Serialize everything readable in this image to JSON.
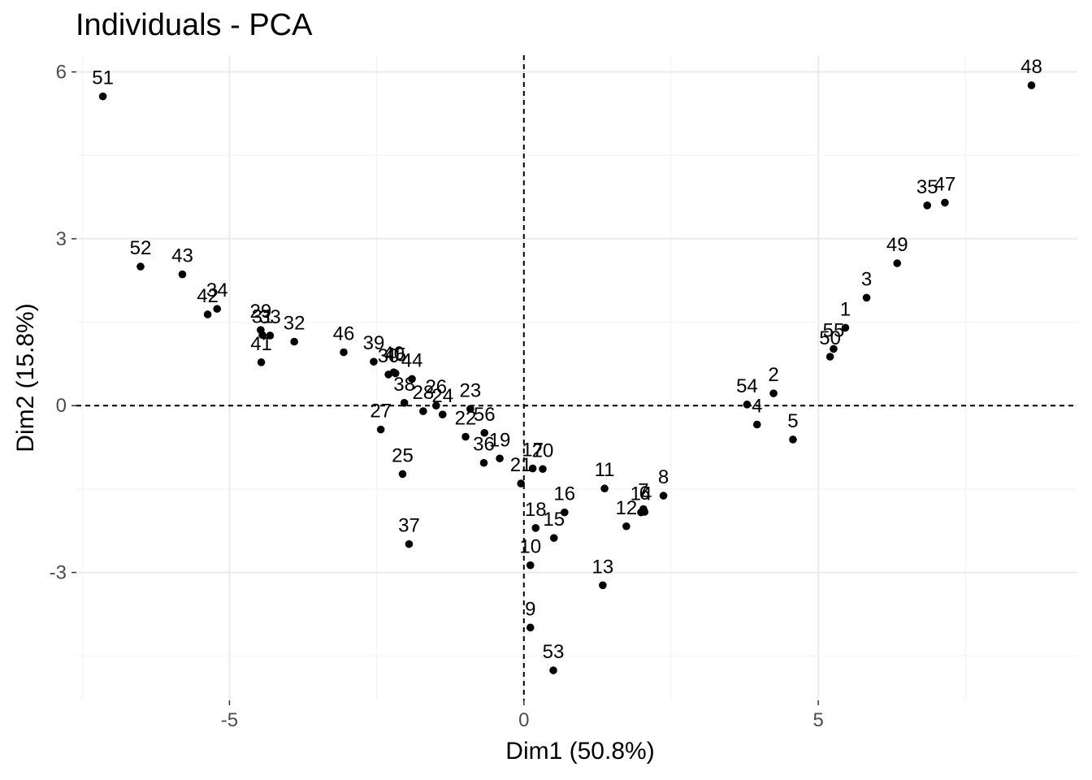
{
  "chart_data": {
    "type": "scatter",
    "title": "Individuals - PCA",
    "xlabel": "Dim1 (50.8%)",
    "ylabel": "Dim2 (15.8%)",
    "xlim": [
      -7.6,
      9.4
    ],
    "ylim": [
      -5.3,
      6.3
    ],
    "x_ticks": [
      -5,
      0,
      5
    ],
    "x_tick_labels": [
      "-5",
      "0",
      "5"
    ],
    "y_ticks": [
      -3,
      0,
      3,
      6
    ],
    "y_tick_labels": [
      "-3",
      "0",
      "3",
      "6"
    ],
    "grid": true,
    "reference_lines": {
      "x": 0,
      "y": 0,
      "style": "dashed"
    },
    "points": [
      {
        "label": "1",
        "x": 5.46,
        "y": 1.4
      },
      {
        "label": "2",
        "x": 4.24,
        "y": 0.22
      },
      {
        "label": "3",
        "x": 5.82,
        "y": 1.94
      },
      {
        "label": "4",
        "x": 3.96,
        "y": -0.34
      },
      {
        "label": "5",
        "x": 4.57,
        "y": -0.61
      },
      {
        "label": "6",
        "x": 2.05,
        "y": -1.91
      },
      {
        "label": "7",
        "x": 2.03,
        "y": -1.86
      },
      {
        "label": "8",
        "x": 2.37,
        "y": -1.62
      },
      {
        "label": "9",
        "x": 0.11,
        "y": -3.99
      },
      {
        "label": "10",
        "x": 0.11,
        "y": -2.87
      },
      {
        "label": "11",
        "x": 1.37,
        "y": -1.49
      },
      {
        "label": "12",
        "x": 1.74,
        "y": -2.17
      },
      {
        "label": "13",
        "x": 1.34,
        "y": -3.23
      },
      {
        "label": "14",
        "x": 1.99,
        "y": -1.92
      },
      {
        "label": "15",
        "x": 0.51,
        "y": -2.38
      },
      {
        "label": "16",
        "x": 0.69,
        "y": -1.92
      },
      {
        "label": "17",
        "x": 0.15,
        "y": -1.13
      },
      {
        "label": "18",
        "x": 0.2,
        "y": -2.2
      },
      {
        "label": "19",
        "x": -0.41,
        "y": -0.95
      },
      {
        "label": "20",
        "x": 0.32,
        "y": -1.14
      },
      {
        "label": "21",
        "x": -0.05,
        "y": -1.4
      },
      {
        "label": "22",
        "x": -0.99,
        "y": -0.56
      },
      {
        "label": "23",
        "x": -0.91,
        "y": -0.06
      },
      {
        "label": "24",
        "x": -1.38,
        "y": -0.16
      },
      {
        "label": "25",
        "x": -2.06,
        "y": -1.23
      },
      {
        "label": "26",
        "x": -1.49,
        "y": 0.0
      },
      {
        "label": "27",
        "x": -2.43,
        "y": -0.43
      },
      {
        "label": "28",
        "x": -1.71,
        "y": -0.1
      },
      {
        "label": "29",
        "x": -4.47,
        "y": 1.36
      },
      {
        "label": "30",
        "x": -2.3,
        "y": 0.56
      },
      {
        "label": "31",
        "x": -4.44,
        "y": 1.27
      },
      {
        "label": "32",
        "x": -3.9,
        "y": 1.15
      },
      {
        "label": "33",
        "x": -4.31,
        "y": 1.26
      },
      {
        "label": "34",
        "x": -5.21,
        "y": 1.74
      },
      {
        "label": "35",
        "x": 6.85,
        "y": 3.6
      },
      {
        "label": "36",
        "x": -0.68,
        "y": -1.03
      },
      {
        "label": "37",
        "x": -1.95,
        "y": -2.49
      },
      {
        "label": "38",
        "x": -2.03,
        "y": 0.05
      },
      {
        "label": "39",
        "x": -2.55,
        "y": 0.79
      },
      {
        "label": "40",
        "x": -2.21,
        "y": 0.6
      },
      {
        "label": "41",
        "x": -4.46,
        "y": 0.78
      },
      {
        "label": "42",
        "x": -5.37,
        "y": 1.64
      },
      {
        "label": "43",
        "x": -5.8,
        "y": 2.36
      },
      {
        "label": "44",
        "x": -1.9,
        "y": 0.48
      },
      {
        "label": "45",
        "x": -2.18,
        "y": 0.58
      },
      {
        "label": "46",
        "x": -3.06,
        "y": 0.96
      },
      {
        "label": "47",
        "x": 7.15,
        "y": 3.65
      },
      {
        "label": "48",
        "x": 8.62,
        "y": 5.76
      },
      {
        "label": "49",
        "x": 6.34,
        "y": 2.56
      },
      {
        "label": "50",
        "x": 5.2,
        "y": 0.88
      },
      {
        "label": "51",
        "x": -7.15,
        "y": 5.56
      },
      {
        "label": "52",
        "x": -6.51,
        "y": 2.5
      },
      {
        "label": "53",
        "x": 0.5,
        "y": -4.76
      },
      {
        "label": "54",
        "x": 3.79,
        "y": 0.02
      },
      {
        "label": "55",
        "x": 5.26,
        "y": 1.02
      },
      {
        "label": "56",
        "x": -0.67,
        "y": -0.49
      }
    ]
  }
}
